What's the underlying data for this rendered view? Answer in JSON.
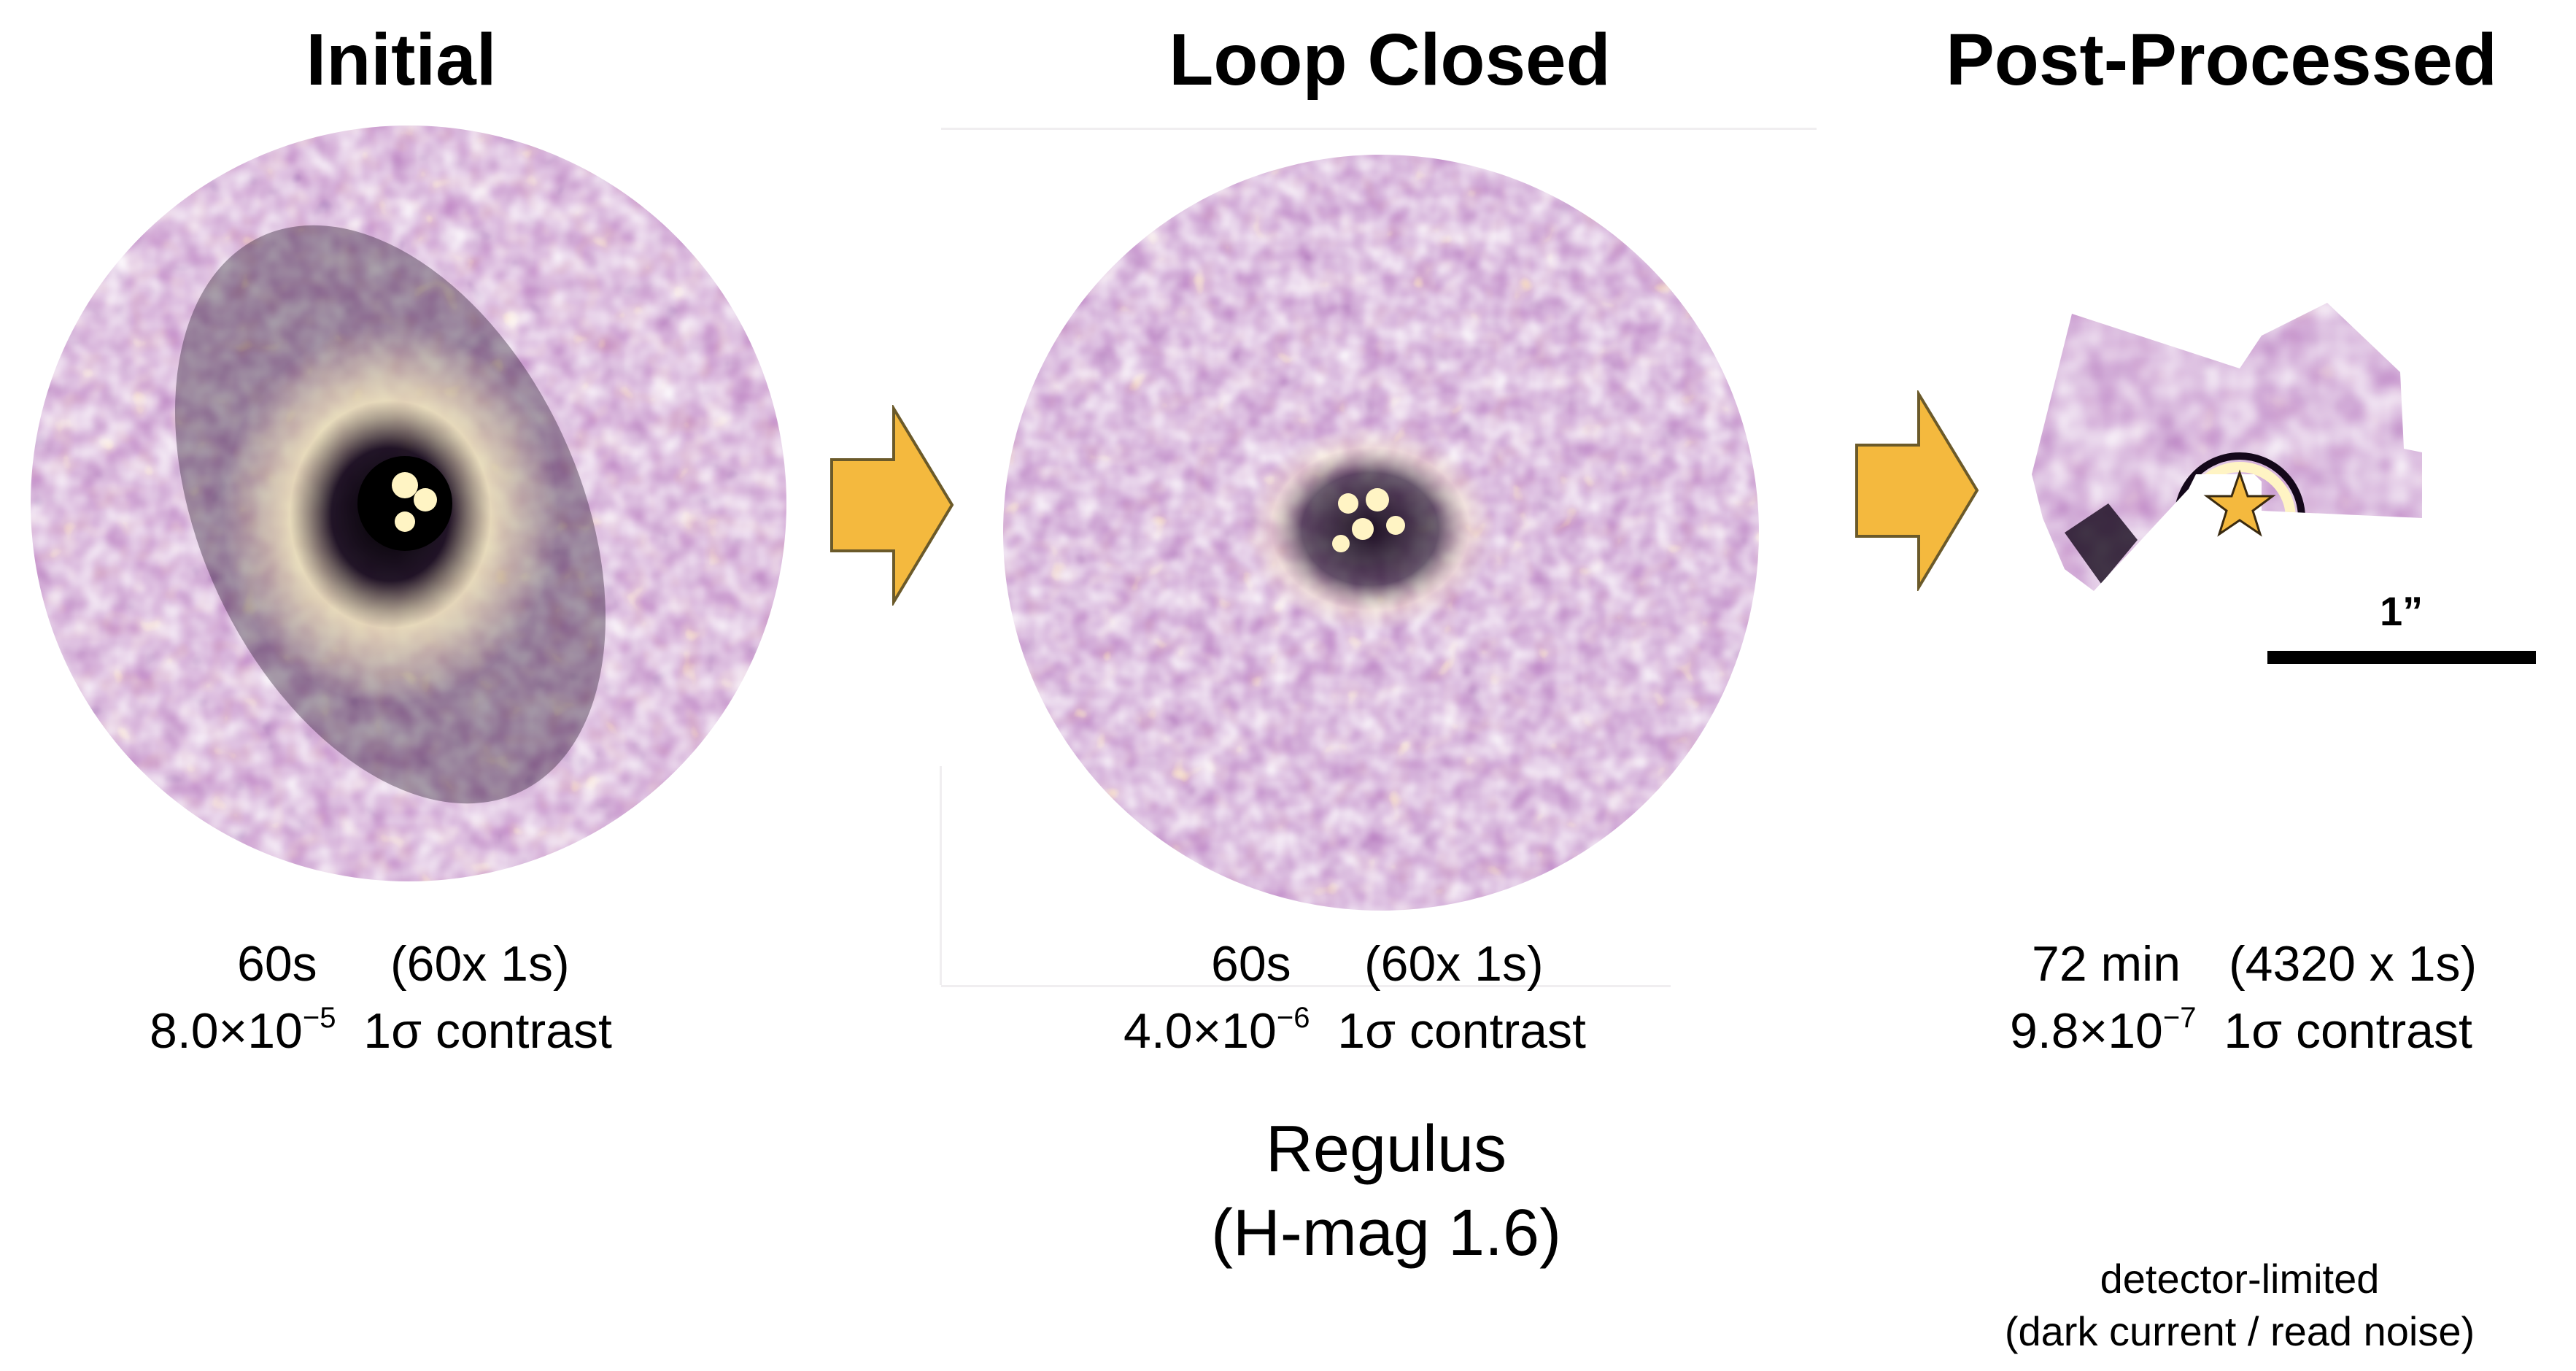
{
  "panels": [
    {
      "title": "Initial",
      "exposure": "60s",
      "frames": "(60x 1s)",
      "contrast_mantissa": "8.0×10",
      "contrast_exponent": "−5",
      "contrast_label": "1σ contrast"
    },
    {
      "title": "Loop Closed",
      "exposure": "60s",
      "frames": "(60x 1s)",
      "contrast_mantissa": "4.0×10",
      "contrast_exponent": "−6",
      "contrast_label": "1σ contrast"
    },
    {
      "title": "Post-Processed",
      "exposure": "72 min",
      "frames": "(4320 x 1s)",
      "contrast_mantissa": "9.8×10",
      "contrast_exponent": "−7",
      "contrast_label": "1σ contrast"
    }
  ],
  "target": {
    "name": "Regulus",
    "magnitude": "(H-mag 1.6)"
  },
  "note": {
    "line1": "detector-limited",
    "line2": "(dark current / read noise)"
  },
  "scale": {
    "label": "1”"
  },
  "colors": {
    "background_purple": "#7a3a86",
    "speckle_bright": "#fff4c4",
    "speckle_orange": "#e8945a",
    "speckle_dark": "#14081a",
    "arrow_fill": "#f4b93e",
    "arrow_stroke": "#6b5a2a"
  }
}
